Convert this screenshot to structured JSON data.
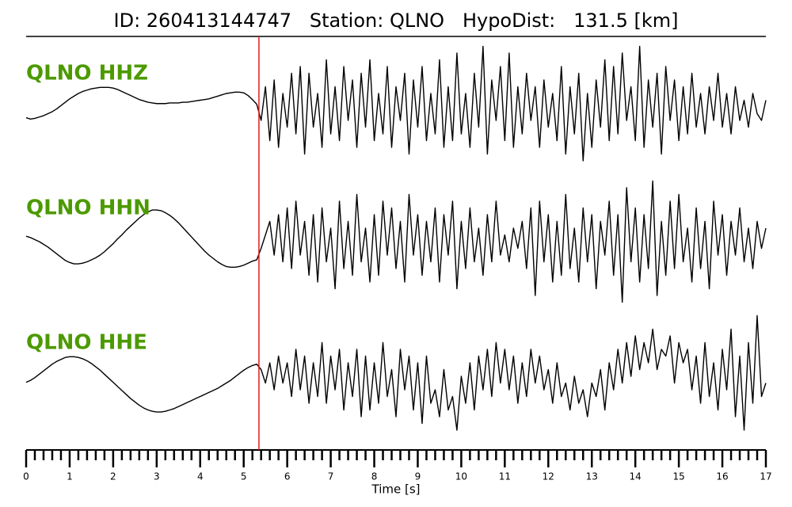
{
  "chart_data": {
    "type": "seismogram",
    "title": "ID: 260413144747   Station: QLNO   HypoDist:   131.5 [km]",
    "xlabel": "Time [s]",
    "xlim": [
      0,
      17
    ],
    "xticks": [
      0,
      1,
      2,
      3,
      4,
      5,
      6,
      7,
      8,
      9,
      10,
      11,
      12,
      13,
      14,
      15,
      16,
      17
    ],
    "xminorticks": [
      0.2,
      0.4,
      0.6,
      0.8,
      1.2,
      1.4,
      1.6,
      1.8,
      2.2,
      2.4,
      2.6,
      2.8,
      3.2,
      3.4,
      3.6,
      3.8,
      4.2,
      4.4,
      4.6,
      4.8,
      5.2,
      5.4,
      5.6,
      5.8,
      6.2,
      6.4,
      6.6,
      6.8,
      7.2,
      7.4,
      7.6,
      7.8,
      8.2,
      8.4,
      8.6,
      8.8,
      9.2,
      9.4,
      9.6,
      9.8,
      10.2,
      10.4,
      10.6,
      10.8,
      11.2,
      11.4,
      11.6,
      11.8,
      12.2,
      12.4,
      12.6,
      12.8,
      13.2,
      13.4,
      13.6,
      13.8,
      14.2,
      14.4,
      14.6,
      14.8,
      15.2,
      15.4,
      15.6,
      15.8,
      16.2,
      16.4,
      16.6,
      16.8
    ],
    "ylim": [
      -10,
      10
    ],
    "pick": {
      "x": 5.35,
      "color": "#e41a1c"
    },
    "label_color": "#4c9a00",
    "line_color": "#000000",
    "x": [
      0,
      0.1,
      0.2,
      0.3,
      0.4,
      0.5,
      0.6,
      0.7,
      0.8,
      0.9,
      1,
      1.1,
      1.2,
      1.3,
      1.4,
      1.5,
      1.6,
      1.7,
      1.8,
      1.9,
      2,
      2.1,
      2.2,
      2.3,
      2.4,
      2.5,
      2.6,
      2.7,
      2.8,
      2.9,
      3,
      3.1,
      3.2,
      3.3,
      3.4,
      3.5,
      3.6,
      3.7,
      3.8,
      3.9,
      4,
      4.1,
      4.2,
      4.3,
      4.4,
      4.5,
      4.6,
      4.7,
      4.8,
      4.9,
      5,
      5.1,
      5.2,
      5.3,
      5.4,
      5.5,
      5.6,
      5.7,
      5.8,
      5.9,
      6,
      6.1,
      6.2,
      6.3,
      6.4,
      6.5,
      6.6,
      6.7,
      6.8,
      6.9,
      7,
      7.1,
      7.2,
      7.3,
      7.4,
      7.5,
      7.6,
      7.7,
      7.8,
      7.9,
      8,
      8.1,
      8.2,
      8.3,
      8.4,
      8.5,
      8.6,
      8.7,
      8.8,
      8.9,
      9,
      9.1,
      9.2,
      9.3,
      9.4,
      9.5,
      9.6,
      9.7,
      9.8,
      9.9,
      10,
      10.1,
      10.2,
      10.3,
      10.4,
      10.5,
      10.6,
      10.7,
      10.8,
      10.9,
      11,
      11.1,
      11.2,
      11.3,
      11.4,
      11.5,
      11.6,
      11.7,
      11.8,
      11.9,
      12,
      12.1,
      12.2,
      12.3,
      12.4,
      12.5,
      12.6,
      12.7,
      12.8,
      12.9,
      13,
      13.1,
      13.2,
      13.3,
      13.4,
      13.5,
      13.6,
      13.7,
      13.8,
      13.9,
      14,
      14.1,
      14.2,
      14.3,
      14.4,
      14.5,
      14.6,
      14.7,
      14.8,
      14.9,
      15,
      15.1,
      15.2,
      15.3,
      15.4,
      15.5,
      15.6,
      15.7,
      15.8,
      15.9,
      16,
      16.1,
      16.2,
      16.3,
      16.4,
      16.5,
      16.6,
      16.7,
      16.8,
      16.9,
      17
    ],
    "series": [
      {
        "name": "QLNO HHZ",
        "values": [
          -1.6,
          -1.8,
          -1.7,
          -1.5,
          -1.3,
          -1,
          -0.7,
          -0.3,
          0.2,
          0.7,
          1.2,
          1.6,
          2,
          2.3,
          2.5,
          2.7,
          2.8,
          2.9,
          2.9,
          2.9,
          2.8,
          2.6,
          2.3,
          2,
          1.7,
          1.4,
          1.1,
          0.9,
          0.7,
          0.6,
          0.5,
          0.5,
          0.5,
          0.6,
          0.6,
          0.6,
          0.7,
          0.7,
          0.8,
          0.9,
          1,
          1.1,
          1.2,
          1.4,
          1.6,
          1.8,
          2,
          2.1,
          2.2,
          2.2,
          2.1,
          1.7,
          1.1,
          0.4,
          -2,
          3,
          -5,
          4,
          -6,
          2,
          -3,
          5,
          -4,
          6,
          -7,
          5,
          -3,
          2,
          -6,
          7,
          -4,
          3,
          -5,
          6,
          -2,
          4,
          -6,
          5,
          -3,
          7,
          -5,
          2,
          -4,
          6,
          -6,
          3,
          -2,
          5,
          -7,
          4,
          -3,
          6,
          -5,
          2,
          -4,
          7,
          -6,
          3,
          -5,
          8,
          -4,
          2,
          -6,
          5,
          -3,
          9,
          -7,
          4,
          -2,
          6,
          -5,
          8,
          -6,
          3,
          -4,
          5,
          -2,
          3,
          -6,
          4,
          -3,
          2,
          -5,
          6,
          -7,
          3,
          -4,
          5,
          -8,
          2,
          -6,
          4,
          -3,
          7,
          -5,
          6,
          -4,
          8,
          -2,
          3,
          -5,
          9,
          -6,
          4,
          -3,
          5,
          -7,
          6,
          -2,
          4,
          -5,
          3,
          -4,
          5,
          -3,
          2,
          -4,
          3,
          -2,
          5,
          -3,
          2,
          -4,
          3,
          -2,
          1,
          -3,
          2,
          -1,
          -2,
          1
        ]
      },
      {
        "name": "QLNO HHN",
        "values": [
          0.8,
          0.6,
          0.3,
          0,
          -0.4,
          -0.8,
          -1.3,
          -1.8,
          -2.3,
          -2.8,
          -3.1,
          -3.3,
          -3.3,
          -3.2,
          -3,
          -2.7,
          -2.4,
          -2,
          -1.5,
          -0.9,
          -0.3,
          0.4,
          1,
          1.7,
          2.3,
          2.9,
          3.5,
          4,
          4.4,
          4.7,
          4.7,
          4.6,
          4.3,
          3.9,
          3.4,
          2.8,
          2.1,
          1.4,
          0.7,
          0,
          -0.7,
          -1.4,
          -2,
          -2.5,
          -3,
          -3.4,
          -3.7,
          -3.8,
          -3.8,
          -3.7,
          -3.5,
          -3.2,
          -2.9,
          -2.7,
          -1,
          1,
          3,
          -2,
          4,
          -3,
          5,
          -4,
          6,
          -2,
          3,
          -5,
          4,
          -6,
          5,
          -3,
          2,
          -7,
          6,
          -4,
          3,
          -5,
          7,
          -3,
          2,
          -6,
          4,
          -5,
          6,
          -2,
          5,
          -4,
          3,
          -6,
          7,
          -2,
          4,
          -5,
          3,
          -3,
          5,
          -6,
          4,
          -2,
          6,
          -7,
          3,
          -4,
          5,
          -3,
          2,
          -5,
          4,
          -3,
          6,
          -2,
          1,
          -3,
          2,
          -1,
          3,
          -4,
          5,
          -8,
          6,
          -3,
          4,
          -6,
          3,
          -5,
          7,
          -4,
          2,
          -6,
          5,
          -3,
          4,
          -7,
          3,
          -2,
          6,
          -5,
          4,
          -9,
          8,
          -3,
          5,
          -6,
          4,
          -4,
          9,
          -8,
          3,
          -5,
          6,
          -4,
          7,
          -3,
          2,
          -6,
          5,
          -4,
          3,
          -7,
          6,
          -2,
          4,
          -5,
          3,
          -2,
          5,
          -3,
          2,
          -4,
          3,
          -1,
          2
        ]
      },
      {
        "name": "QLNO HHE",
        "values": [
          -0.9,
          -0.6,
          -0.2,
          0.3,
          0.8,
          1.3,
          1.8,
          2.2,
          2.5,
          2.8,
          2.9,
          2.9,
          2.8,
          2.6,
          2.3,
          1.9,
          1.4,
          0.9,
          0.3,
          -0.3,
          -0.9,
          -1.5,
          -2.1,
          -2.7,
          -3.3,
          -3.8,
          -4.3,
          -4.7,
          -5,
          -5.2,
          -5.3,
          -5.3,
          -5.2,
          -5,
          -4.8,
          -4.5,
          -4.2,
          -3.9,
          -3.6,
          -3.3,
          -3,
          -2.7,
          -2.4,
          -2.1,
          -1.8,
          -1.4,
          -1,
          -0.6,
          -0.1,
          0.4,
          0.9,
          1.3,
          1.6,
          1.8,
          1,
          -1,
          2,
          -2,
          3,
          -1,
          2,
          -3,
          4,
          -2,
          3,
          -4,
          2,
          -3,
          5,
          -4,
          3,
          -2,
          4,
          -5,
          2,
          -3,
          4,
          -6,
          3,
          -5,
          2,
          -4,
          5,
          -3,
          1,
          -6,
          4,
          -2,
          3,
          -5,
          2,
          -7,
          3,
          -4,
          -2,
          -6,
          1,
          -5,
          -3,
          -8,
          0,
          -4,
          2,
          -5,
          3,
          -2,
          4,
          -3,
          5,
          -1,
          4,
          -2,
          3,
          -4,
          2,
          -3,
          4,
          -1,
          3,
          -2,
          1,
          -4,
          2,
          -3,
          -1,
          -5,
          0,
          -4,
          -2,
          -6,
          -1,
          -3,
          1,
          -5,
          2,
          -2,
          4,
          -1,
          5,
          0,
          6,
          1,
          5,
          2,
          7,
          1,
          4,
          3,
          6,
          -1,
          5,
          2,
          4,
          -2,
          3,
          -4,
          5,
          -3,
          2,
          -5,
          4,
          -2,
          7,
          -6,
          3,
          -8,
          5,
          -4,
          9,
          -3,
          -1
        ]
      }
    ]
  }
}
